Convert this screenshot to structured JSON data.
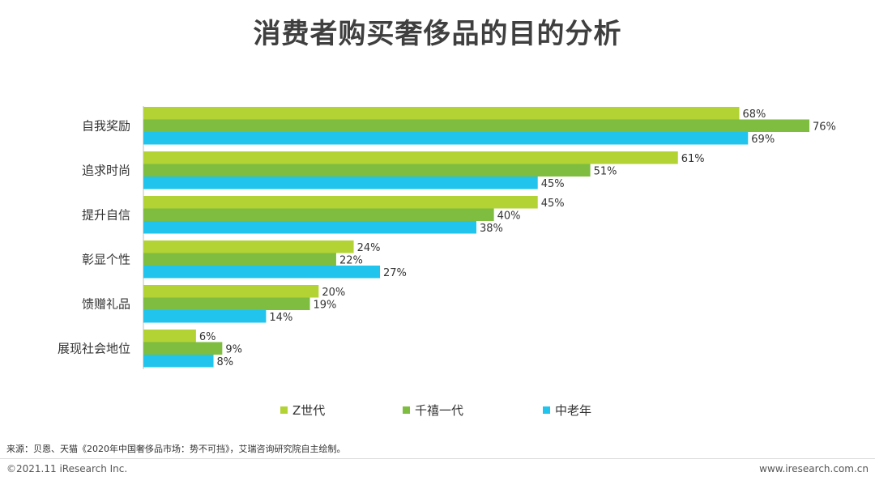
{
  "title": "消费者购买奢侈品的目的分析",
  "chart_data": {
    "type": "bar",
    "orientation": "horizontal",
    "title": "消费者购买奢侈品的目的分析",
    "categories": [
      "自我奖励",
      "追求时尚",
      "提升自信",
      "彰显个性",
      "馈赠礼品",
      "展现社会地位"
    ],
    "series": [
      {
        "name": "Z世代",
        "color": "#b3d334",
        "values": [
          68,
          61,
          45,
          24,
          20,
          6
        ]
      },
      {
        "name": "千禧一代",
        "color": "#7ebd3f",
        "values": [
          76,
          51,
          40,
          22,
          19,
          9
        ]
      },
      {
        "name": "中老年",
        "color": "#20c4ec",
        "values": [
          69,
          45,
          38,
          27,
          14,
          8
        ]
      }
    ],
    "value_suffix": "%",
    "xlim": [
      0,
      76
    ],
    "legend_position": "bottom",
    "grid": false
  },
  "source": "来源：贝恩、天猫《2020年中国奢侈品市场：势不可挡》，艾瑞咨询研究院自主绘制。",
  "footer": {
    "copyright": "©2021.11 iResearch Inc.",
    "website": "www.iresearch.com.cn"
  }
}
